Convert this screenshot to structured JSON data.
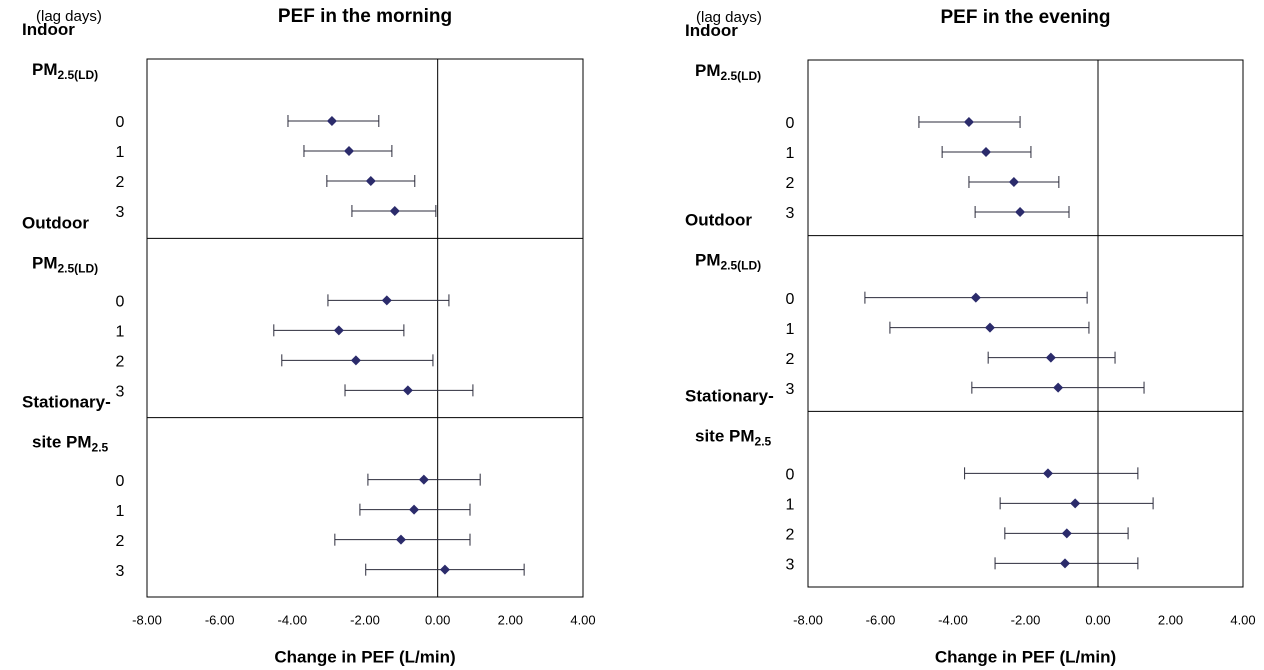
{
  "chart_data": [
    {
      "type": "forest",
      "title": "PEF in the morning",
      "y_label": "(lag days)",
      "x_label": "Change in PEF (L/min)",
      "xlim": [
        -8,
        4
      ],
      "xticks": [
        {
          "value": -8,
          "label": "-8.00"
        },
        {
          "value": -6,
          "label": "-6.00"
        },
        {
          "value": -4,
          "label": "-4.00"
        },
        {
          "value": -2,
          "label": "-2.00"
        },
        {
          "value": 0,
          "label": "0.00"
        },
        {
          "value": 2,
          "label": "2.00"
        },
        {
          "value": 4,
          "label": "4.00"
        }
      ],
      "color": "#2b2b6b",
      "groups": [
        {
          "label_lines": [
            "Indoor",
            "PM"
          ],
          "subscript": "2.5(LD)",
          "categories": [
            "0",
            "1",
            "2",
            "3"
          ],
          "values": [
            -2.91,
            -2.44,
            -1.84,
            -1.18
          ],
          "lower": [
            -4.12,
            -3.68,
            -3.05,
            -2.36
          ],
          "upper": [
            -1.62,
            -1.26,
            -0.63,
            -0.05
          ]
        },
        {
          "label_lines": [
            "Outdoor",
            "PM"
          ],
          "subscript": "2.5(LD)",
          "categories": [
            "0",
            "1",
            "2",
            "3"
          ],
          "values": [
            -1.4,
            -2.72,
            -2.25,
            -0.82
          ],
          "lower": [
            -3.02,
            -4.51,
            -4.29,
            -2.55
          ],
          "upper": [
            0.31,
            -0.93,
            -0.13,
            0.97
          ]
        },
        {
          "label_lines": [
            "Stationary-",
            "site PM"
          ],
          "subscript": "2.5",
          "categories": [
            "0",
            "1",
            "2",
            "3"
          ],
          "values": [
            -0.38,
            -0.65,
            -1.01,
            0.2
          ],
          "lower": [
            -1.92,
            -2.14,
            -2.83,
            -1.98
          ],
          "upper": [
            1.17,
            0.89,
            0.89,
            2.38
          ]
        }
      ]
    },
    {
      "type": "forest",
      "title": "PEF in the evening",
      "y_label": "(lag days)",
      "x_label": "Change in PEF (L/min)",
      "xlim": [
        -8,
        4
      ],
      "xticks": [
        {
          "value": -8,
          "label": "-8.00"
        },
        {
          "value": -6,
          "label": "-6.00"
        },
        {
          "value": -4,
          "label": "-4.00"
        },
        {
          "value": -2,
          "label": "-2.00"
        },
        {
          "value": 0,
          "label": "0.00"
        },
        {
          "value": 2,
          "label": "2.00"
        },
        {
          "value": 4,
          "label": "4.00"
        }
      ],
      "color": "#2b2b6b",
      "groups": [
        {
          "label_lines": [
            "Indoor",
            "PM"
          ],
          "subscript": "2.5(LD)",
          "categories": [
            "0",
            "1",
            "2",
            "3"
          ],
          "values": [
            -3.56,
            -3.09,
            -2.32,
            -2.15
          ],
          "lower": [
            -4.94,
            -4.3,
            -3.56,
            -3.39
          ],
          "upper": [
            -2.15,
            -1.85,
            -1.08,
            -0.8
          ]
        },
        {
          "label_lines": [
            "Outdoor",
            "PM"
          ],
          "subscript": "2.5(LD)",
          "categories": [
            "0",
            "1",
            "2",
            "3"
          ],
          "values": [
            -3.37,
            -2.98,
            -1.3,
            -1.1
          ],
          "lower": [
            -6.43,
            -5.74,
            -3.03,
            -3.48
          ],
          "upper": [
            -0.3,
            -0.25,
            0.47,
            1.27
          ]
        },
        {
          "label_lines": [
            "Stationary-",
            "site PM"
          ],
          "subscript": "2.5",
          "categories": [
            "0",
            "1",
            "2",
            "3"
          ],
          "values": [
            -1.38,
            -0.63,
            -0.86,
            -0.91
          ],
          "lower": [
            -3.68,
            -2.7,
            -2.57,
            -2.84
          ],
          "upper": [
            1.1,
            1.52,
            0.83,
            1.1
          ]
        }
      ]
    }
  ]
}
